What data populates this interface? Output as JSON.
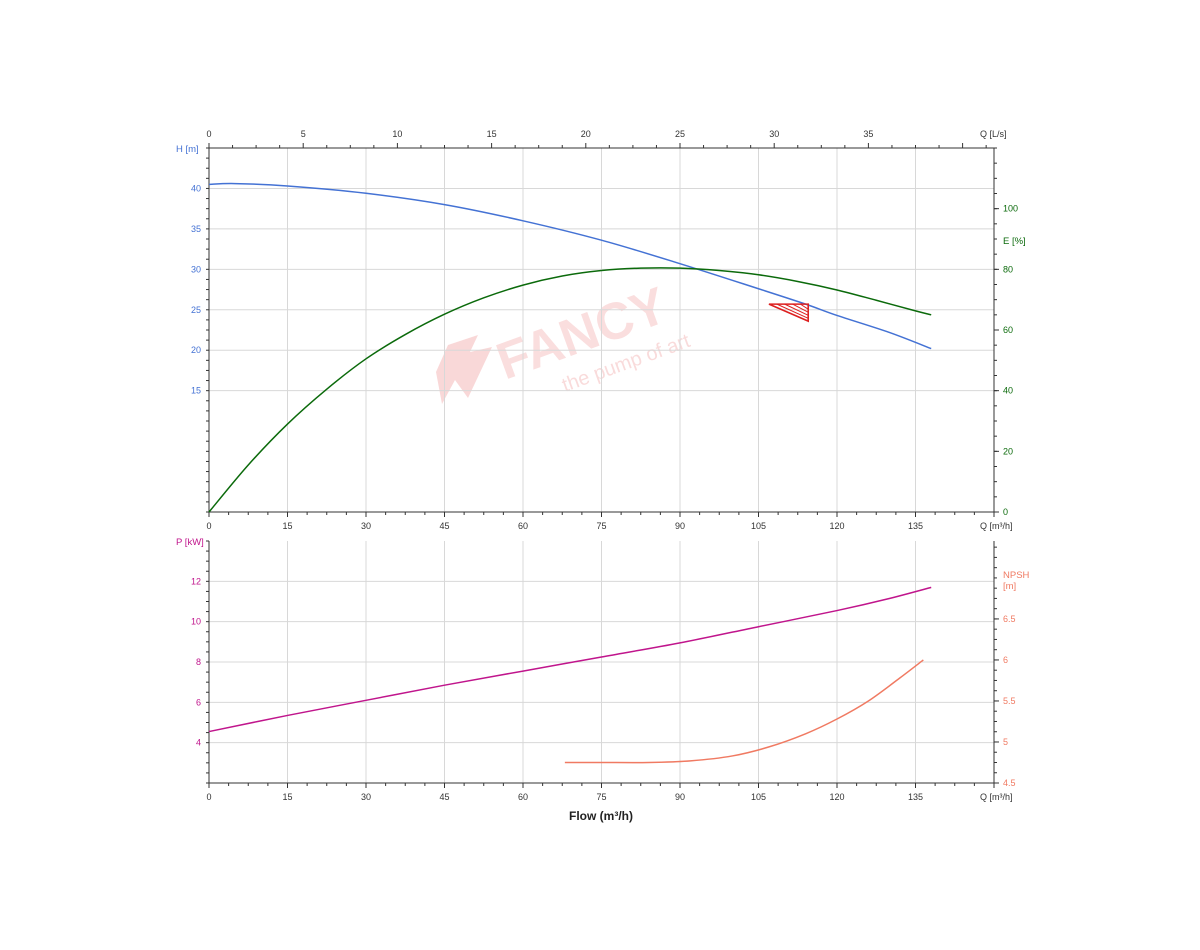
{
  "colors": {
    "head": "#4472d4",
    "efficiency": "#0b6a0b",
    "power": "#c0158c",
    "npsh": "#f07a62",
    "axis": "#333333",
    "grid": "#d8d8d8",
    "marker": "#dd2020",
    "watermark": "#f4b8b8"
  },
  "watermark": {
    "brand": "FANCY",
    "tagline": "the pump of art"
  },
  "chart_data": [
    {
      "type": "line",
      "name": "head-efficiency",
      "x_label": "Q [m³/h]",
      "x_top_label": "Q [L/s]",
      "x_range": [
        0,
        150
      ],
      "x_ticks": [
        0,
        15,
        30,
        45,
        60,
        75,
        90,
        105,
        120,
        135
      ],
      "x_top_ticks": [
        0,
        5,
        10,
        15,
        20,
        25,
        30,
        35
      ],
      "y_left_label": "H [m]",
      "y_left_range": [
        0,
        45
      ],
      "y_left_ticks": [
        15,
        20,
        25,
        30,
        35,
        40
      ],
      "y_right_label": "E [%]",
      "y_right_range": [
        0,
        120
      ],
      "y_right_ticks": [
        0,
        20,
        40,
        60,
        80,
        100
      ],
      "grid": true,
      "series": [
        {
          "axis": "left",
          "color_key": "head",
          "x": [
            0,
            5,
            15,
            30,
            45,
            60,
            75,
            90,
            105,
            114,
            120,
            130,
            138
          ],
          "y": [
            40.5,
            40.6,
            40.3,
            39.4,
            38.0,
            36.0,
            33.6,
            30.7,
            27.6,
            25.7,
            24.3,
            22.2,
            20.2
          ]
        },
        {
          "axis": "right",
          "color_key": "efficiency",
          "x": [
            0,
            7.5,
            15,
            22.5,
            30,
            37.5,
            45,
            52.5,
            60,
            67.5,
            75,
            82.5,
            90,
            97.5,
            105,
            112.5,
            120,
            127.5,
            135,
            138
          ],
          "y": [
            0,
            15.5,
            29,
            40.5,
            50.5,
            58.5,
            65.2,
            70.6,
            74.8,
            77.8,
            79.6,
            80.4,
            80.4,
            79.6,
            78.2,
            76.0,
            73.2,
            69.8,
            66.3,
            65.0
          ]
        }
      ],
      "duty_point_marker": {
        "x": 107,
        "x_end": 114.5,
        "y_head": 25.7,
        "y_head_bottom": 23.6
      }
    },
    {
      "type": "line",
      "name": "power-npsh",
      "x_label": "Q [m³/h]",
      "x_range": [
        0,
        150
      ],
      "x_ticks": [
        0,
        15,
        30,
        45,
        60,
        75,
        90,
        105,
        120,
        135
      ],
      "y_left_label": "P [kW]",
      "y_left_range": [
        2,
        14
      ],
      "y_left_ticks": [
        4,
        6,
        8,
        10,
        12
      ],
      "y_right_label_lines": [
        "NPSH",
        "[m]"
      ],
      "y_right_range": [
        4.5,
        7.45
      ],
      "y_right_ticks": [
        4.5,
        5,
        5.5,
        6,
        6.5
      ],
      "grid": true,
      "series": [
        {
          "axis": "left",
          "color_key": "power",
          "x": [
            0,
            15,
            30,
            45,
            60,
            75,
            90,
            105,
            120,
            130,
            138
          ],
          "y": [
            4.55,
            5.35,
            6.1,
            6.85,
            7.55,
            8.25,
            8.95,
            9.75,
            10.55,
            11.15,
            11.7
          ]
        },
        {
          "axis": "right",
          "color_key": "npsh",
          "x": [
            68,
            75,
            84,
            92,
            100,
            107,
            114,
            120,
            126,
            132,
            136.5
          ],
          "y": [
            4.75,
            4.75,
            4.75,
            4.77,
            4.83,
            4.94,
            5.1,
            5.28,
            5.5,
            5.78,
            6.0
          ]
        }
      ]
    }
  ],
  "footer": {
    "flow_label": "Flow (m³/h)"
  }
}
